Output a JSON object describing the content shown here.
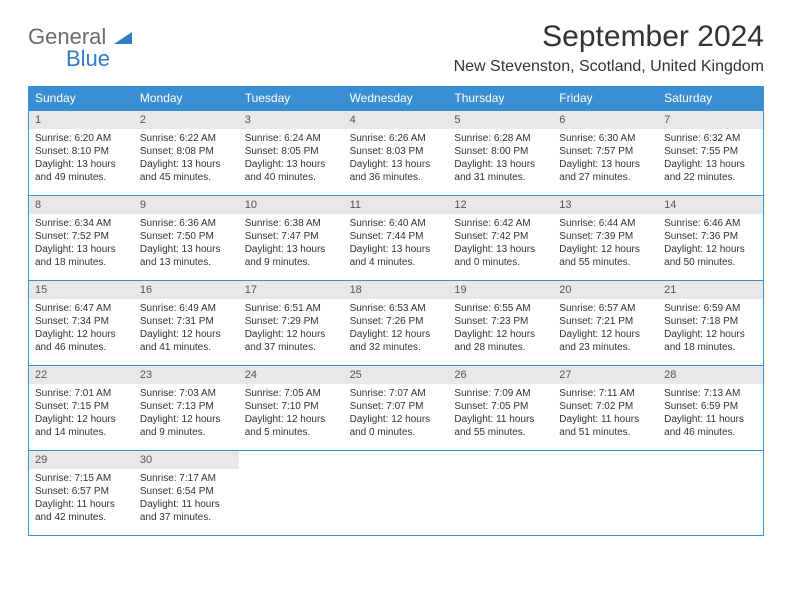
{
  "logo": {
    "text1": "General",
    "text2": "Blue"
  },
  "title": "September 2024",
  "subtitle": "New Stevenston, Scotland, United Kingdom",
  "colors": {
    "header_bg": "#3a8fd4",
    "header_text": "#ffffff",
    "border": "#3a8fd4",
    "daynum_bg": "#e8e8e8",
    "text": "#333333",
    "logo_gray": "#6b6b6b",
    "logo_blue": "#2f7cc4"
  },
  "day_headers": [
    "Sunday",
    "Monday",
    "Tuesday",
    "Wednesday",
    "Thursday",
    "Friday",
    "Saturday"
  ],
  "weeks": [
    [
      {
        "n": "1",
        "sr": "Sunrise: 6:20 AM",
        "ss": "Sunset: 8:10 PM",
        "dl": "Daylight: 13 hours and 49 minutes."
      },
      {
        "n": "2",
        "sr": "Sunrise: 6:22 AM",
        "ss": "Sunset: 8:08 PM",
        "dl": "Daylight: 13 hours and 45 minutes."
      },
      {
        "n": "3",
        "sr": "Sunrise: 6:24 AM",
        "ss": "Sunset: 8:05 PM",
        "dl": "Daylight: 13 hours and 40 minutes."
      },
      {
        "n": "4",
        "sr": "Sunrise: 6:26 AM",
        "ss": "Sunset: 8:03 PM",
        "dl": "Daylight: 13 hours and 36 minutes."
      },
      {
        "n": "5",
        "sr": "Sunrise: 6:28 AM",
        "ss": "Sunset: 8:00 PM",
        "dl": "Daylight: 13 hours and 31 minutes."
      },
      {
        "n": "6",
        "sr": "Sunrise: 6:30 AM",
        "ss": "Sunset: 7:57 PM",
        "dl": "Daylight: 13 hours and 27 minutes."
      },
      {
        "n": "7",
        "sr": "Sunrise: 6:32 AM",
        "ss": "Sunset: 7:55 PM",
        "dl": "Daylight: 13 hours and 22 minutes."
      }
    ],
    [
      {
        "n": "8",
        "sr": "Sunrise: 6:34 AM",
        "ss": "Sunset: 7:52 PM",
        "dl": "Daylight: 13 hours and 18 minutes."
      },
      {
        "n": "9",
        "sr": "Sunrise: 6:36 AM",
        "ss": "Sunset: 7:50 PM",
        "dl": "Daylight: 13 hours and 13 minutes."
      },
      {
        "n": "10",
        "sr": "Sunrise: 6:38 AM",
        "ss": "Sunset: 7:47 PM",
        "dl": "Daylight: 13 hours and 9 minutes."
      },
      {
        "n": "11",
        "sr": "Sunrise: 6:40 AM",
        "ss": "Sunset: 7:44 PM",
        "dl": "Daylight: 13 hours and 4 minutes."
      },
      {
        "n": "12",
        "sr": "Sunrise: 6:42 AM",
        "ss": "Sunset: 7:42 PM",
        "dl": "Daylight: 13 hours and 0 minutes."
      },
      {
        "n": "13",
        "sr": "Sunrise: 6:44 AM",
        "ss": "Sunset: 7:39 PM",
        "dl": "Daylight: 12 hours and 55 minutes."
      },
      {
        "n": "14",
        "sr": "Sunrise: 6:46 AM",
        "ss": "Sunset: 7:36 PM",
        "dl": "Daylight: 12 hours and 50 minutes."
      }
    ],
    [
      {
        "n": "15",
        "sr": "Sunrise: 6:47 AM",
        "ss": "Sunset: 7:34 PM",
        "dl": "Daylight: 12 hours and 46 minutes."
      },
      {
        "n": "16",
        "sr": "Sunrise: 6:49 AM",
        "ss": "Sunset: 7:31 PM",
        "dl": "Daylight: 12 hours and 41 minutes."
      },
      {
        "n": "17",
        "sr": "Sunrise: 6:51 AM",
        "ss": "Sunset: 7:29 PM",
        "dl": "Daylight: 12 hours and 37 minutes."
      },
      {
        "n": "18",
        "sr": "Sunrise: 6:53 AM",
        "ss": "Sunset: 7:26 PM",
        "dl": "Daylight: 12 hours and 32 minutes."
      },
      {
        "n": "19",
        "sr": "Sunrise: 6:55 AM",
        "ss": "Sunset: 7:23 PM",
        "dl": "Daylight: 12 hours and 28 minutes."
      },
      {
        "n": "20",
        "sr": "Sunrise: 6:57 AM",
        "ss": "Sunset: 7:21 PM",
        "dl": "Daylight: 12 hours and 23 minutes."
      },
      {
        "n": "21",
        "sr": "Sunrise: 6:59 AM",
        "ss": "Sunset: 7:18 PM",
        "dl": "Daylight: 12 hours and 18 minutes."
      }
    ],
    [
      {
        "n": "22",
        "sr": "Sunrise: 7:01 AM",
        "ss": "Sunset: 7:15 PM",
        "dl": "Daylight: 12 hours and 14 minutes."
      },
      {
        "n": "23",
        "sr": "Sunrise: 7:03 AM",
        "ss": "Sunset: 7:13 PM",
        "dl": "Daylight: 12 hours and 9 minutes."
      },
      {
        "n": "24",
        "sr": "Sunrise: 7:05 AM",
        "ss": "Sunset: 7:10 PM",
        "dl": "Daylight: 12 hours and 5 minutes."
      },
      {
        "n": "25",
        "sr": "Sunrise: 7:07 AM",
        "ss": "Sunset: 7:07 PM",
        "dl": "Daylight: 12 hours and 0 minutes."
      },
      {
        "n": "26",
        "sr": "Sunrise: 7:09 AM",
        "ss": "Sunset: 7:05 PM",
        "dl": "Daylight: 11 hours and 55 minutes."
      },
      {
        "n": "27",
        "sr": "Sunrise: 7:11 AM",
        "ss": "Sunset: 7:02 PM",
        "dl": "Daylight: 11 hours and 51 minutes."
      },
      {
        "n": "28",
        "sr": "Sunrise: 7:13 AM",
        "ss": "Sunset: 6:59 PM",
        "dl": "Daylight: 11 hours and 46 minutes."
      }
    ],
    [
      {
        "n": "29",
        "sr": "Sunrise: 7:15 AM",
        "ss": "Sunset: 6:57 PM",
        "dl": "Daylight: 11 hours and 42 minutes."
      },
      {
        "n": "30",
        "sr": "Sunrise: 7:17 AM",
        "ss": "Sunset: 6:54 PM",
        "dl": "Daylight: 11 hours and 37 minutes."
      },
      null,
      null,
      null,
      null,
      null
    ]
  ]
}
